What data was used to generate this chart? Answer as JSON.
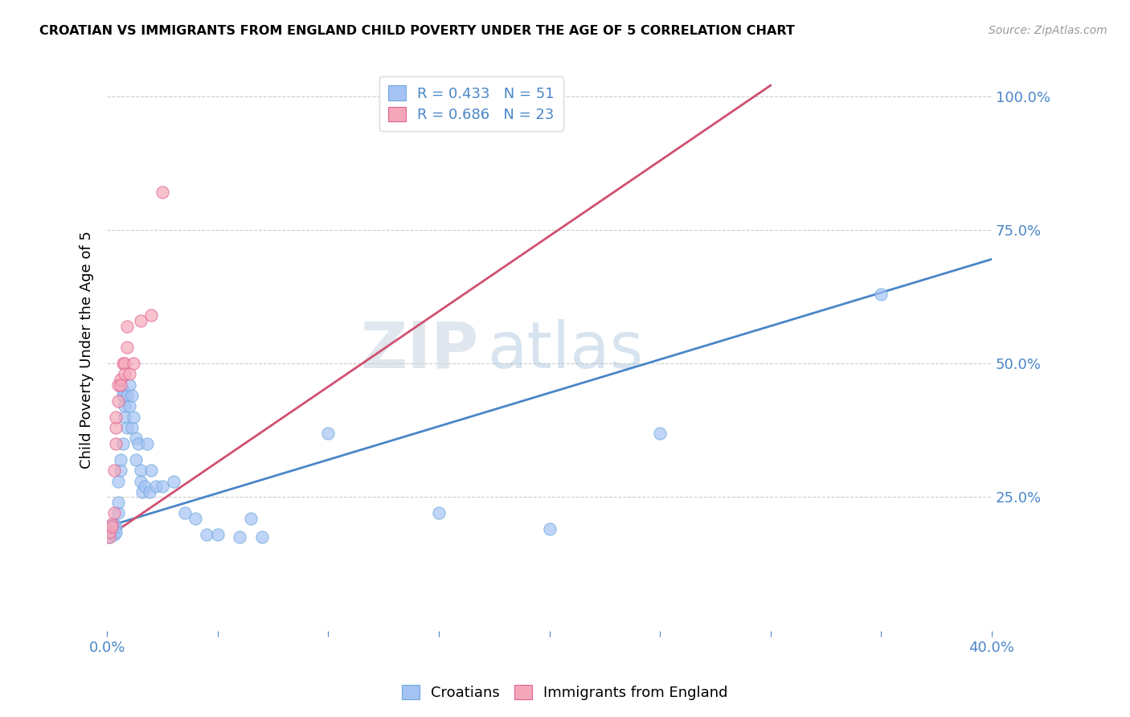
{
  "title": "CROATIAN VS IMMIGRANTS FROM ENGLAND CHILD POVERTY UNDER THE AGE OF 5 CORRELATION CHART",
  "source": "Source: ZipAtlas.com",
  "ylabel": "Child Poverty Under the Age of 5",
  "legend_blue_r": "R = 0.433",
  "legend_blue_n": "N = 51",
  "legend_pink_r": "R = 0.686",
  "legend_pink_n": "N = 23",
  "legend_label_blue": "Croatians",
  "legend_label_pink": "Immigrants from England",
  "blue_color": "#a4c2f4",
  "pink_color": "#f4a7b9",
  "blue_edge_color": "#6fa8dc",
  "pink_edge_color": "#e06090",
  "blue_line_color": "#4a86c8",
  "pink_line_color": "#d05070",
  "blue_scatter": [
    [
      0.001,
      0.195
    ],
    [
      0.001,
      0.175
    ],
    [
      0.002,
      0.195
    ],
    [
      0.002,
      0.185
    ],
    [
      0.003,
      0.2
    ],
    [
      0.003,
      0.19
    ],
    [
      0.003,
      0.18
    ],
    [
      0.004,
      0.195
    ],
    [
      0.004,
      0.185
    ],
    [
      0.005,
      0.22
    ],
    [
      0.005,
      0.24
    ],
    [
      0.005,
      0.28
    ],
    [
      0.006,
      0.3
    ],
    [
      0.006,
      0.32
    ],
    [
      0.007,
      0.35
    ],
    [
      0.007,
      0.44
    ],
    [
      0.007,
      0.45
    ],
    [
      0.008,
      0.42
    ],
    [
      0.008,
      0.4
    ],
    [
      0.009,
      0.38
    ],
    [
      0.009,
      0.44
    ],
    [
      0.01,
      0.42
    ],
    [
      0.01,
      0.46
    ],
    [
      0.011,
      0.44
    ],
    [
      0.011,
      0.38
    ],
    [
      0.012,
      0.4
    ],
    [
      0.013,
      0.36
    ],
    [
      0.013,
      0.32
    ],
    [
      0.014,
      0.35
    ],
    [
      0.015,
      0.3
    ],
    [
      0.015,
      0.28
    ],
    [
      0.016,
      0.26
    ],
    [
      0.017,
      0.27
    ],
    [
      0.018,
      0.35
    ],
    [
      0.019,
      0.26
    ],
    [
      0.02,
      0.3
    ],
    [
      0.022,
      0.27
    ],
    [
      0.025,
      0.27
    ],
    [
      0.03,
      0.28
    ],
    [
      0.035,
      0.22
    ],
    [
      0.04,
      0.21
    ],
    [
      0.045,
      0.18
    ],
    [
      0.05,
      0.18
    ],
    [
      0.06,
      0.175
    ],
    [
      0.065,
      0.21
    ],
    [
      0.07,
      0.175
    ],
    [
      0.1,
      0.37
    ],
    [
      0.15,
      0.22
    ],
    [
      0.2,
      0.19
    ],
    [
      0.25,
      0.37
    ],
    [
      0.35,
      0.63
    ]
  ],
  "pink_scatter": [
    [
      0.001,
      0.175
    ],
    [
      0.001,
      0.185
    ],
    [
      0.002,
      0.2
    ],
    [
      0.002,
      0.195
    ],
    [
      0.003,
      0.22
    ],
    [
      0.003,
      0.3
    ],
    [
      0.004,
      0.35
    ],
    [
      0.004,
      0.38
    ],
    [
      0.004,
      0.4
    ],
    [
      0.005,
      0.43
    ],
    [
      0.005,
      0.46
    ],
    [
      0.006,
      0.47
    ],
    [
      0.006,
      0.46
    ],
    [
      0.007,
      0.5
    ],
    [
      0.008,
      0.5
    ],
    [
      0.008,
      0.48
    ],
    [
      0.009,
      0.53
    ],
    [
      0.009,
      0.57
    ],
    [
      0.01,
      0.48
    ],
    [
      0.012,
      0.5
    ],
    [
      0.015,
      0.58
    ],
    [
      0.02,
      0.59
    ],
    [
      0.025,
      0.82
    ]
  ],
  "blue_trend_x": [
    0.0,
    0.4
  ],
  "blue_trend_y": [
    0.195,
    0.695
  ],
  "pink_trend_x": [
    0.0,
    0.3
  ],
  "pink_trend_y": [
    0.175,
    1.02
  ],
  "xlim": [
    0.0,
    0.4
  ],
  "ylim": [
    0.0,
    1.05
  ],
  "xticks": [
    0.0,
    0.05,
    0.1,
    0.15,
    0.2,
    0.25,
    0.3,
    0.35,
    0.4
  ],
  "yticks": [
    0.0,
    0.25,
    0.5,
    0.75,
    1.0
  ],
  "ytick_labels": [
    "",
    "25.0%",
    "50.0%",
    "75.0%",
    "100.0%"
  ],
  "xtick_show": [
    "0.0%",
    "",
    "",
    "",
    "",
    "",
    "",
    "",
    "40.0%"
  ],
  "grid_color": "#cccccc",
  "watermark_zip_color": "#c8d8e8",
  "watermark_atlas_color": "#a0bcd8"
}
